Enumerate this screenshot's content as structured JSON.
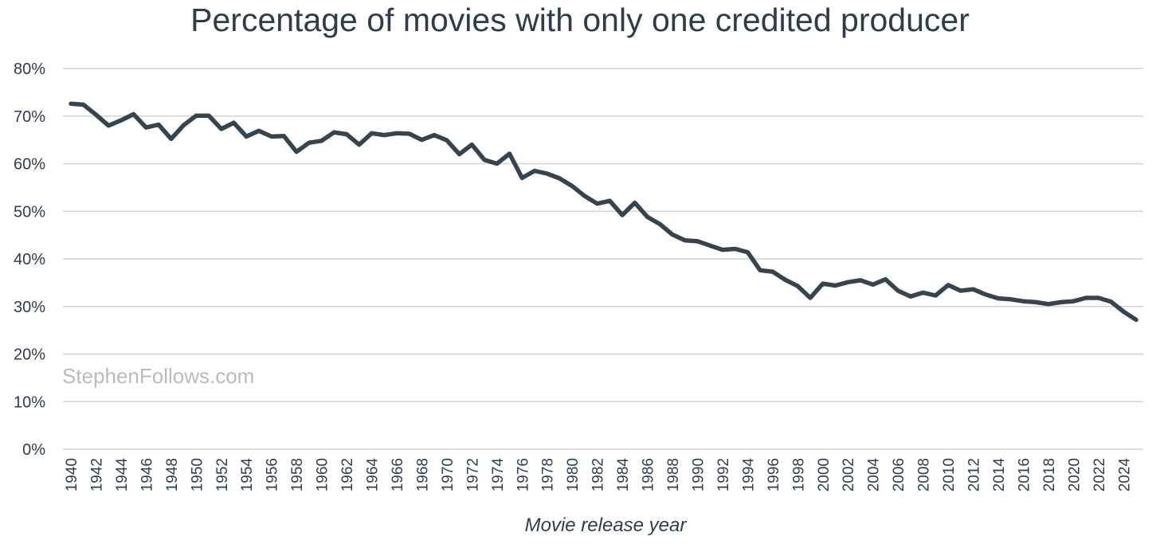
{
  "chart_data": {
    "type": "line",
    "title": "Percentage of movies with only one credited producer",
    "xlabel": "Movie release year",
    "ylabel": "",
    "watermark": "StephenFollows.com",
    "ylim": [
      0,
      80
    ],
    "yticks": [
      "0%",
      "10%",
      "20%",
      "30%",
      "40%",
      "50%",
      "60%",
      "70%",
      "80%"
    ],
    "ytick_values": [
      0,
      10,
      20,
      30,
      40,
      50,
      60,
      70,
      80
    ],
    "xlim": [
      1940,
      2025
    ],
    "xtick_labels": [
      "1940",
      "1942",
      "1944",
      "1946",
      "1948",
      "1950",
      "1952",
      "1954",
      "1956",
      "1958",
      "1960",
      "1962",
      "1964",
      "1966",
      "1968",
      "1970",
      "1972",
      "1974",
      "1976",
      "1978",
      "1980",
      "1982",
      "1984",
      "1986",
      "1988",
      "1990",
      "1992",
      "1994",
      "1996",
      "1998",
      "2000",
      "2002",
      "2004",
      "2006",
      "2008",
      "2010",
      "2012",
      "2014",
      "2016",
      "2018",
      "2020",
      "2022",
      "2024"
    ],
    "grid": true,
    "colors": {
      "line": "#35444f",
      "grid": "#d4d4d4",
      "text": "#2f3d4a",
      "watermark": "#b8bcc0"
    },
    "series": [
      {
        "name": "One credited producer",
        "x": [
          1940,
          1941,
          1942,
          1943,
          1944,
          1945,
          1946,
          1947,
          1948,
          1949,
          1950,
          1951,
          1952,
          1953,
          1954,
          1955,
          1956,
          1957,
          1958,
          1959,
          1960,
          1961,
          1962,
          1963,
          1964,
          1965,
          1966,
          1967,
          1968,
          1969,
          1970,
          1971,
          1972,
          1973,
          1974,
          1975,
          1976,
          1977,
          1978,
          1979,
          1980,
          1981,
          1982,
          1983,
          1984,
          1985,
          1986,
          1987,
          1988,
          1989,
          1990,
          1991,
          1992,
          1993,
          1994,
          1995,
          1996,
          1997,
          1998,
          1999,
          2000,
          2001,
          2002,
          2003,
          2004,
          2005,
          2006,
          2007,
          2008,
          2009,
          2010,
          2011,
          2012,
          2013,
          2014,
          2015,
          2016,
          2017,
          2018,
          2019,
          2020,
          2021,
          2022,
          2023,
          2024,
          2025
        ],
        "values": [
          72.6,
          72.4,
          70.3,
          68.0,
          69.1,
          70.4,
          67.6,
          68.2,
          65.2,
          68.1,
          70.1,
          70.1,
          67.3,
          68.6,
          65.7,
          66.9,
          65.7,
          65.8,
          62.5,
          64.4,
          64.8,
          66.6,
          66.2,
          64.0,
          66.4,
          66.0,
          66.4,
          66.3,
          65.0,
          66.0,
          64.9,
          62.0,
          64.0,
          60.8,
          60.0,
          62.1,
          57.0,
          58.5,
          57.9,
          56.9,
          55.3,
          53.2,
          51.6,
          52.2,
          49.2,
          51.8,
          48.8,
          47.3,
          45.1,
          43.9,
          43.7,
          42.8,
          41.9,
          42.1,
          41.4,
          37.6,
          37.3,
          35.6,
          34.3,
          31.8,
          34.8,
          34.4,
          35.1,
          35.5,
          34.6,
          35.7,
          33.3,
          32.1,
          32.9,
          32.3,
          34.5,
          33.3,
          33.6,
          32.5,
          31.7,
          31.5,
          31.1,
          30.9,
          30.5,
          30.9,
          31.1,
          31.8,
          31.8,
          31.0,
          28.9,
          27.2
        ]
      }
    ]
  }
}
